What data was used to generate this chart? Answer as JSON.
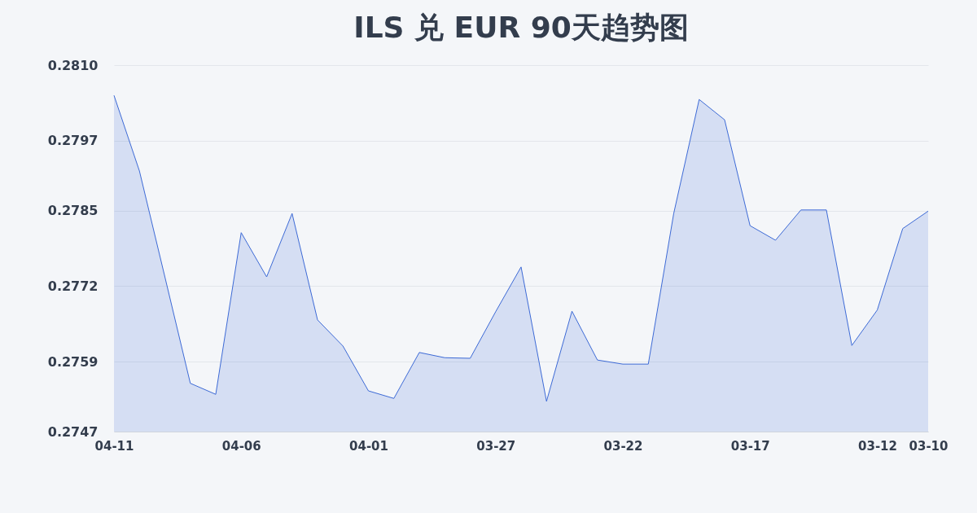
{
  "chart_data": {
    "type": "area",
    "title": "ILS 兑 EUR 90天趋势图",
    "categories": [
      "04-11",
      null,
      null,
      null,
      null,
      "04-06",
      null,
      null,
      null,
      null,
      "04-01",
      null,
      null,
      null,
      null,
      "03-27",
      null,
      null,
      null,
      null,
      "03-22",
      null,
      null,
      null,
      null,
      "03-17",
      null,
      null,
      null,
      null,
      "03-12",
      null,
      "03-10"
    ],
    "series": [
      {
        "color": "#3d6ad6",
        "values": [
          0.28048,
          0.27918,
          0.27736,
          0.27553,
          0.27534,
          0.27812,
          0.27736,
          0.27845,
          0.27662,
          0.27617,
          0.2754,
          0.27527,
          0.27606,
          0.27597,
          0.27596,
          0.27676,
          0.27753,
          0.27522,
          0.27677,
          0.27593,
          0.27586,
          0.27586,
          0.27845,
          0.28041,
          0.28006,
          0.27824,
          0.27799,
          0.27851,
          0.27851,
          0.27618,
          0.27679,
          0.27819,
          0.27849
        ]
      }
    ],
    "ylim": [
      0.2747,
      0.281
    ],
    "yticks": [
      {
        "value": 0.2747,
        "label": "0.2747"
      },
      {
        "value": 0.2759,
        "label": "0.2759"
      },
      {
        "value": 0.2772,
        "label": "0.2772"
      },
      {
        "value": 0.2785,
        "label": "0.2785"
      },
      {
        "value": 0.2797,
        "label": "0.2797"
      },
      {
        "value": 0.281,
        "label": "0.2810"
      }
    ],
    "grid": "y"
  }
}
